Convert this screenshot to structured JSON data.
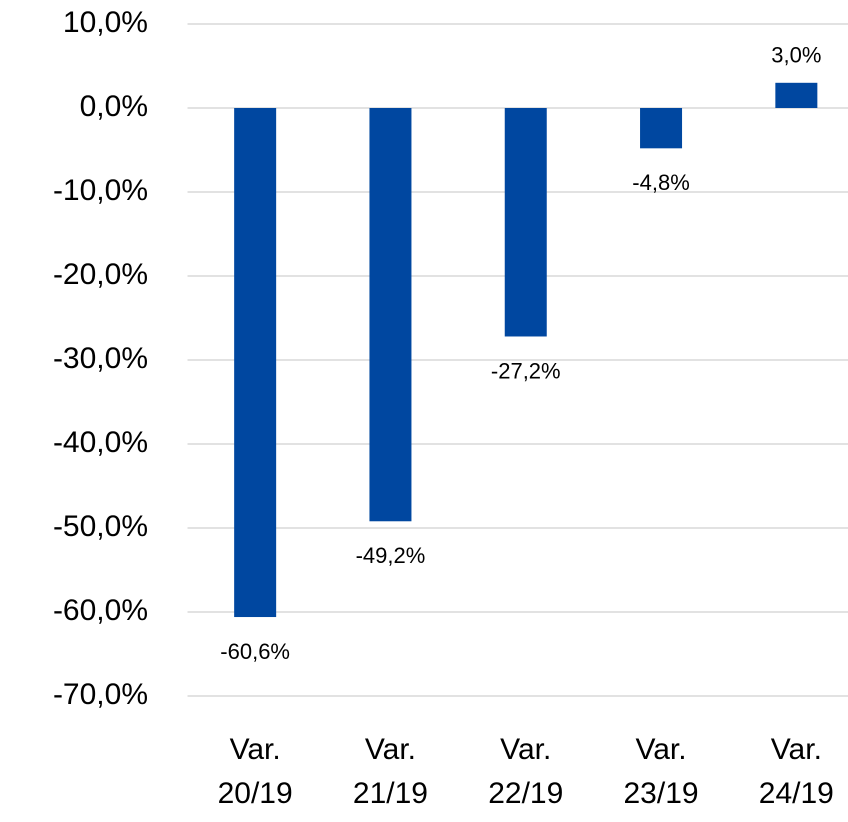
{
  "chart_data": {
    "type": "bar",
    "categories": [
      "Var. 20/19",
      "Var. 21/19",
      "Var. 22/19",
      "Var. 23/19",
      "Var. 24/19"
    ],
    "values": [
      -60.6,
      -49.2,
      -27.2,
      -4.8,
      3.0
    ],
    "value_labels": [
      "-60,6%",
      "-49,2%",
      "-27,2%",
      "-4,8%",
      "3,0%"
    ],
    "color": "#0047a0",
    "ylim": [
      -70,
      10
    ],
    "yticks": [
      {
        "value": 10,
        "label": "10,0%"
      },
      {
        "value": 0,
        "label": "0,0%"
      },
      {
        "value": -10,
        "label": "-10,0%"
      },
      {
        "value": -20,
        "label": "-20,0%"
      },
      {
        "value": -30,
        "label": "-30,0%"
      },
      {
        "value": -40,
        "label": "-40,0%"
      },
      {
        "value": -50,
        "label": "-50,0%"
      },
      {
        "value": -60,
        "label": "-60,0%"
      },
      {
        "value": -70,
        "label": "-70,0%"
      }
    ],
    "grid": true
  }
}
